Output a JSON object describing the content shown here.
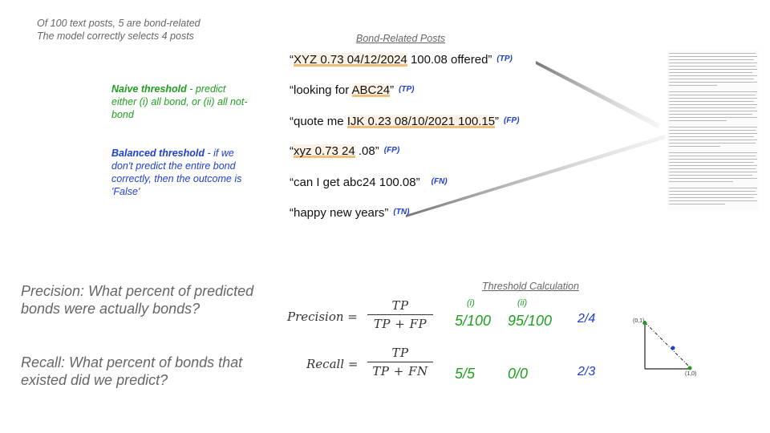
{
  "intro": {
    "line1": "Of 100 text posts, 5 are bond-related",
    "line2": "The model correctly selects 4 posts"
  },
  "naive": {
    "label": "Naive threshold",
    "text": " - predict either (i) all bond, or (ii) all not-bond"
  },
  "balanced": {
    "label": "Balanced threshold",
    "text": " - if we don't predict the entire bond correctly, then the outcome is 'False'"
  },
  "posts_header": "Bond-Related Posts",
  "posts": [
    {
      "pre": "“",
      "hl": "XYZ 0.73 04/12/2024",
      "post": " 100.08 offered”",
      "tag": "(TP)"
    },
    {
      "pre": "“looking for ",
      "hl": "ABC24",
      "post": "”",
      "tag": "(TP)"
    },
    {
      "pre": "“quote me ",
      "hl": "IJK 0.23 08/10/2021 100.15",
      "post": "”",
      "tag": "(FP)"
    },
    {
      "pre": "“",
      "hl": "xyz 0.73 24",
      "post": "  .08”",
      "tag": "(FP)"
    },
    {
      "pre": "“can I get abc24 100.08”",
      "hl": "",
      "post": "",
      "tag": "(FN)"
    },
    {
      "pre": "“happy new years”",
      "hl": "",
      "post": "",
      "tag": "(TN)"
    }
  ],
  "precision_question": {
    "line1": "Precision: What percent of predicted",
    "line2": "bonds were actually bonds?"
  },
  "recall_question": {
    "line1": "Recall: What percent of bonds that",
    "line2": "existed did we predict?"
  },
  "formulas": {
    "precision_lhs": "Precision =",
    "precision_num": "TP",
    "precision_den": "TP + FP",
    "recall_lhs": "Recall =",
    "recall_num": "TP",
    "recall_den": "TP + FN"
  },
  "threshold": {
    "header": "Threshold Calculation",
    "col_i": "(i)",
    "col_ii": "(ii)",
    "precision_i": "5/100",
    "precision_ii": "95/100",
    "precision_balanced": "2/4",
    "recall_i": "5/5",
    "recall_ii": "0/0",
    "recall_balanced": "2/3"
  },
  "mini_plot": {
    "label_top": "(0,1)",
    "label_right": "(1,0)"
  },
  "colors": {
    "green": "#1f9e1f",
    "blue": "#1f3fd0",
    "gray": "#666666",
    "highlight": "#e8aa50"
  }
}
